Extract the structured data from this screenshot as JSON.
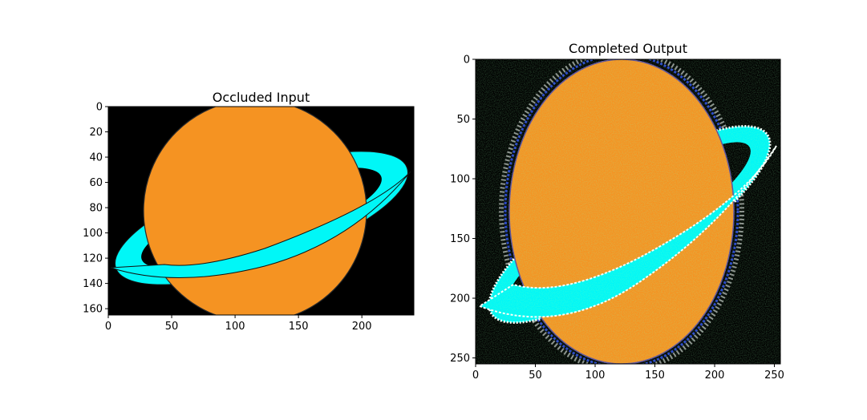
{
  "chart_data": [
    {
      "type": "image",
      "title": "Occluded Input",
      "xlim": [
        0,
        241
      ],
      "ylim": [
        165,
        0
      ],
      "x_ticks": [
        0,
        50,
        100,
        150,
        200
      ],
      "y_ticks": [
        0,
        20,
        40,
        60,
        80,
        100,
        120,
        140,
        160
      ],
      "grid": false,
      "content": "planet with ring on black background",
      "colors": {
        "background": "#000000",
        "planet": "#f59322",
        "ring": "#00f7f7",
        "outline": "#222222"
      }
    },
    {
      "type": "image",
      "title": "Completed Output",
      "xlim": [
        0,
        255
      ],
      "ylim": [
        255,
        0
      ],
      "x_ticks": [
        0,
        50,
        100,
        150,
        200,
        250
      ],
      "y_ticks": [
        0,
        50,
        100,
        150,
        200,
        250
      ],
      "grid": false,
      "content": "stretched planet with noisy multicolor ring on black background",
      "colors": {
        "background": "#000000",
        "planet": "#f59322",
        "ring": "#00f7f7",
        "outline": "#5b4aa0"
      }
    }
  ]
}
